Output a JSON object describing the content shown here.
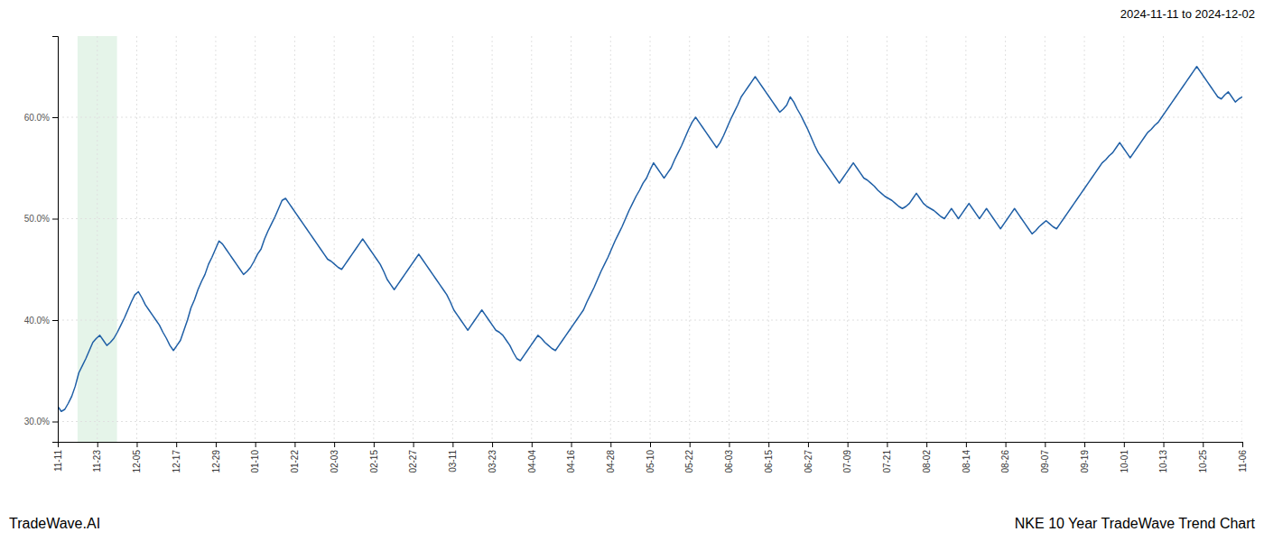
{
  "chart_data": {
    "type": "line",
    "title": "2024-11-11 to 2024-12-02",
    "annotations": [
      "TradeWave.AI",
      "NKE 10 Year TradeWave Trend Chart"
    ],
    "color": "#1f5fa6",
    "grid": true,
    "xlim": [
      0,
      338
    ],
    "xticks": [
      {
        "value": 0,
        "label": "11-11"
      },
      {
        "value": 11.2666666667,
        "label": "11-23"
      },
      {
        "value": 22.5333333333,
        "label": "12-05"
      },
      {
        "value": 33.8,
        "label": "12-17"
      },
      {
        "value": 45.0666666667,
        "label": "12-29"
      },
      {
        "value": 56.3333333333,
        "label": "01-10"
      },
      {
        "value": 67.6,
        "label": "01-22"
      },
      {
        "value": 78.8666666667,
        "label": "02-03"
      },
      {
        "value": 90.1333333333,
        "label": "02-15"
      },
      {
        "value": 101.4,
        "label": "02-27"
      },
      {
        "value": 112.6666666667,
        "label": "03-11"
      },
      {
        "value": 123.9333333333,
        "label": "03-23"
      },
      {
        "value": 135.2,
        "label": "04-04"
      },
      {
        "value": 146.4666666667,
        "label": "04-16"
      },
      {
        "value": 157.7333333333,
        "label": "04-28"
      },
      {
        "value": 169,
        "label": "05-10"
      },
      {
        "value": 180.2666666667,
        "label": "05-22"
      },
      {
        "value": 191.5333333333,
        "label": "06-03"
      },
      {
        "value": 202.8,
        "label": "06-15"
      },
      {
        "value": 214.0666666667,
        "label": "06-27"
      },
      {
        "value": 225.3333333333,
        "label": "07-09"
      },
      {
        "value": 236.6,
        "label": "07-21"
      },
      {
        "value": 247.8666666667,
        "label": "08-02"
      },
      {
        "value": 259.1333333333,
        "label": "08-14"
      },
      {
        "value": 270.4,
        "label": "08-26"
      },
      {
        "value": 281.6666666667,
        "label": "09-07"
      },
      {
        "value": 292.9333333333,
        "label": "09-19"
      },
      {
        "value": 304.2,
        "label": "10-01"
      },
      {
        "value": 315.4666666667,
        "label": "10-13"
      },
      {
        "value": 326.7333333333,
        "label": "10-25"
      },
      {
        "value": 338,
        "label": "11-06"
      }
    ],
    "ylim": [
      28.0,
      68.0
    ],
    "yticks": [
      {
        "value": 30.0,
        "label": "30.0%"
      },
      {
        "value": 40.0,
        "label": "40.0%"
      },
      {
        "value": 50.0,
        "label": "50.0%"
      },
      {
        "value": 60.0,
        "label": "60.0%"
      }
    ],
    "shaded_region": {
      "x_start": 5.6333333333,
      "x_end": 16.9,
      "color": "#d4edda"
    },
    "x": [
      0,
      1,
      2,
      3,
      4,
      5,
      6,
      7,
      8,
      9,
      10,
      11,
      12,
      13,
      14,
      15,
      16,
      17,
      18,
      19,
      20,
      21,
      22,
      23,
      24,
      25,
      26,
      27,
      28,
      29,
      30,
      31,
      32,
      33,
      34,
      35,
      36,
      37,
      38,
      39,
      40,
      41,
      42,
      43,
      44,
      45,
      46,
      47,
      48,
      49,
      50,
      51,
      52,
      53,
      54,
      55,
      56,
      57,
      58,
      59,
      60,
      61,
      62,
      63,
      64,
      65,
      66,
      67,
      68,
      69,
      70,
      71,
      72,
      73,
      74,
      75,
      76,
      77,
      78,
      79,
      80,
      81,
      82,
      83,
      84,
      85,
      86,
      87,
      88,
      89,
      90,
      91,
      92,
      93,
      94,
      95,
      96,
      97,
      98,
      99,
      100,
      101,
      102,
      103,
      104,
      105,
      106,
      107,
      108,
      109,
      110,
      111,
      112,
      113,
      114,
      115,
      116,
      117,
      118,
      119,
      120,
      121,
      122,
      123,
      124,
      125,
      126,
      127,
      128,
      129,
      130,
      131,
      132,
      133,
      134,
      135,
      136,
      137,
      138,
      139,
      140,
      141,
      142,
      143,
      144,
      145,
      146,
      147,
      148,
      149,
      150,
      151,
      152,
      153,
      154,
      155,
      156,
      157,
      158,
      159,
      160,
      161,
      162,
      163,
      164,
      165,
      166,
      167,
      168,
      169,
      170,
      171,
      172,
      173,
      174,
      175,
      176,
      177,
      178,
      179,
      180,
      181,
      182,
      183,
      184,
      185,
      186,
      187,
      188,
      189,
      190,
      191,
      192,
      193,
      194,
      195,
      196,
      197,
      198,
      199,
      200,
      201,
      202,
      203,
      204,
      205,
      206,
      207,
      208,
      209,
      210,
      211,
      212,
      213,
      214,
      215,
      216,
      217,
      218,
      219,
      220,
      221,
      222,
      223,
      224,
      225,
      226,
      227,
      228,
      229,
      230,
      231,
      232,
      233,
      234,
      235,
      236,
      237,
      238,
      239,
      240,
      241,
      242,
      243,
      244,
      245,
      246,
      247,
      248,
      249,
      250,
      251,
      252,
      253,
      254,
      255,
      256,
      257,
      258,
      259,
      260,
      261,
      262,
      263,
      264,
      265,
      266,
      267,
      268,
      269,
      270,
      271,
      272,
      273,
      274,
      275,
      276,
      277,
      278,
      279,
      280,
      281,
      282,
      283,
      284,
      285,
      286,
      287,
      288,
      289,
      290,
      291,
      292,
      293,
      294,
      295,
      296,
      297,
      298,
      299,
      300,
      301,
      302,
      303,
      304,
      305,
      306,
      307,
      308,
      309,
      310,
      311,
      312,
      313,
      314,
      315,
      316,
      317,
      318,
      319,
      320,
      321,
      322,
      323,
      324,
      325,
      326,
      327,
      328,
      329,
      330,
      331,
      332,
      333,
      334,
      335,
      336,
      337,
      338
    ],
    "values": [
      31.5,
      31.0,
      31.2,
      31.8,
      32.5,
      33.5,
      34.8,
      35.5,
      36.2,
      37.0,
      37.8,
      38.2,
      38.5,
      38.0,
      37.5,
      37.8,
      38.2,
      38.8,
      39.5,
      40.2,
      41.0,
      41.8,
      42.5,
      42.8,
      42.2,
      41.5,
      41.0,
      40.5,
      40.0,
      39.5,
      38.8,
      38.2,
      37.5,
      37.0,
      37.5,
      38.0,
      39.0,
      40.0,
      41.2,
      42.0,
      43.0,
      43.8,
      44.5,
      45.5,
      46.2,
      47.0,
      47.8,
      47.5,
      47.0,
      46.5,
      46.0,
      45.5,
      45.0,
      44.5,
      44.8,
      45.2,
      45.8,
      46.5,
      47.0,
      48.0,
      48.8,
      49.5,
      50.2,
      51.0,
      51.8,
      52.0,
      51.5,
      51.0,
      50.5,
      50.0,
      49.5,
      49.0,
      48.5,
      48.0,
      47.5,
      47.0,
      46.5,
      46.0,
      45.8,
      45.5,
      45.2,
      45.0,
      45.5,
      46.0,
      46.5,
      47.0,
      47.5,
      48.0,
      47.5,
      47.0,
      46.5,
      46.0,
      45.5,
      44.8,
      44.0,
      43.5,
      43.0,
      43.5,
      44.0,
      44.5,
      45.0,
      45.5,
      46.0,
      46.5,
      46.0,
      45.5,
      45.0,
      44.5,
      44.0,
      43.5,
      43.0,
      42.5,
      41.8,
      41.0,
      40.5,
      40.0,
      39.5,
      39.0,
      39.5,
      40.0,
      40.5,
      41.0,
      40.5,
      40.0,
      39.5,
      39.0,
      38.8,
      38.5,
      38.0,
      37.5,
      36.8,
      36.2,
      36.0,
      36.5,
      37.0,
      37.5,
      38.0,
      38.5,
      38.2,
      37.8,
      37.5,
      37.2,
      37.0,
      37.5,
      38.0,
      38.5,
      39.0,
      39.5,
      40.0,
      40.5,
      41.0,
      41.8,
      42.5,
      43.2,
      44.0,
      44.8,
      45.5,
      46.2,
      47.0,
      47.8,
      48.5,
      49.2,
      50.0,
      50.8,
      51.5,
      52.2,
      52.8,
      53.5,
      54.0,
      54.8,
      55.5,
      55.0,
      54.5,
      54.0,
      54.5,
      55.0,
      55.8,
      56.5,
      57.2,
      58.0,
      58.8,
      59.5,
      60.0,
      59.5,
      59.0,
      58.5,
      58.0,
      57.5,
      57.0,
      57.5,
      58.2,
      59.0,
      59.8,
      60.5,
      61.2,
      62.0,
      62.5,
      63.0,
      63.5,
      64.0,
      63.5,
      63.0,
      62.5,
      62.0,
      61.5,
      61.0,
      60.5,
      60.8,
      61.2,
      62.0,
      61.5,
      60.8,
      60.2,
      59.5,
      58.8,
      58.0,
      57.2,
      56.5,
      56.0,
      55.5,
      55.0,
      54.5,
      54.0,
      53.5,
      54.0,
      54.5,
      55.0,
      55.5,
      55.0,
      54.5,
      54.0,
      53.8,
      53.5,
      53.2,
      52.8,
      52.5,
      52.2,
      52.0,
      51.8,
      51.5,
      51.2,
      51.0,
      51.2,
      51.5,
      52.0,
      52.5,
      52.0,
      51.5,
      51.2,
      51.0,
      50.8,
      50.5,
      50.2,
      50.0,
      50.5,
      51.0,
      50.5,
      50.0,
      50.5,
      51.0,
      51.5,
      51.0,
      50.5,
      50.0,
      50.5,
      51.0,
      50.5,
      50.0,
      49.5,
      49.0,
      49.5,
      50.0,
      50.5,
      51.0,
      50.5,
      50.0,
      49.5,
      49.0,
      48.5,
      48.8,
      49.2,
      49.5,
      49.8,
      49.5,
      49.2,
      49.0,
      49.5,
      50.0,
      50.5,
      51.0,
      51.5,
      52.0,
      52.5,
      53.0,
      53.5,
      54.0,
      54.5,
      55.0,
      55.5,
      55.8,
      56.2,
      56.5,
      57.0,
      57.5,
      57.0,
      56.5,
      56.0,
      56.5,
      57.0,
      57.5,
      58.0,
      58.5,
      58.8,
      59.2,
      59.5,
      60.0,
      60.5,
      61.0,
      61.5,
      62.0,
      62.5,
      63.0,
      63.5,
      64.0,
      64.5,
      65.0,
      64.5,
      64.0,
      63.5,
      63.0,
      62.5,
      62.0,
      61.8,
      62.2,
      62.5,
      62.0,
      61.5,
      61.8,
      62.0
    ]
  }
}
